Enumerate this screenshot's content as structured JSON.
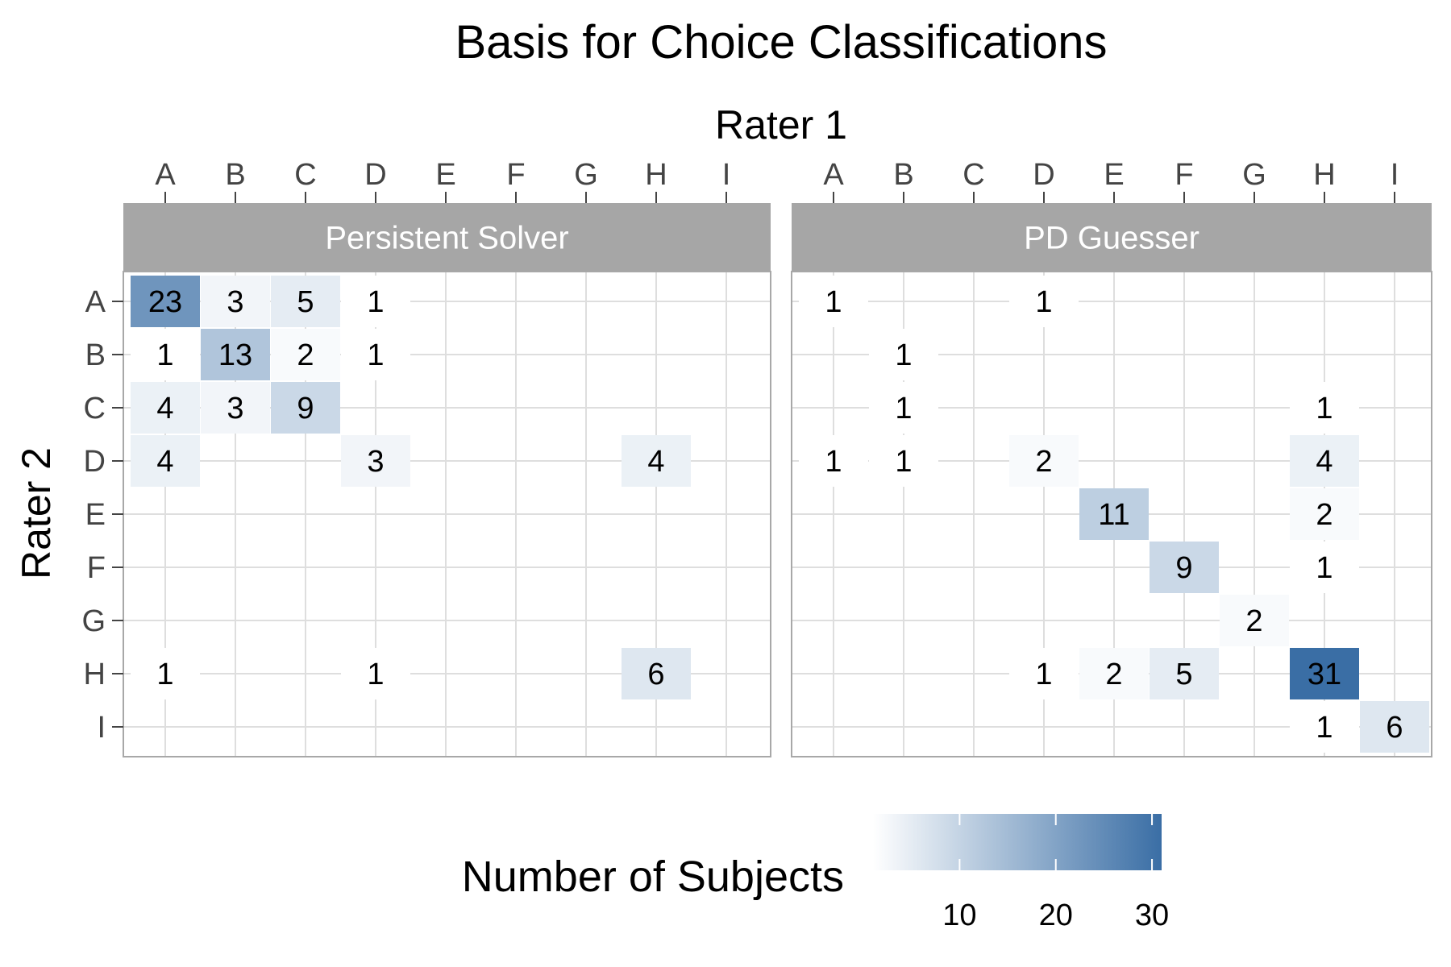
{
  "chart_data": {
    "type": "heatmap",
    "title": "Basis for Choice Classifications",
    "xlabel": "Rater 1",
    "ylabel": "Rater 2",
    "x_categories": [
      "A",
      "B",
      "C",
      "D",
      "E",
      "F",
      "G",
      "H",
      "I"
    ],
    "y_categories": [
      "A",
      "B",
      "C",
      "D",
      "E",
      "F",
      "G",
      "H",
      "I"
    ],
    "legend": {
      "title": "Number of Subjects",
      "ticks": [
        10,
        20,
        30
      ],
      "range": [
        1,
        31
      ],
      "low_color": "#ffffff",
      "high_color": "#3a6ea5",
      "placement": "bottom"
    },
    "panels": [
      {
        "name": "Persistent Solver",
        "cells": [
          {
            "x": "A",
            "y": "A",
            "value": 23
          },
          {
            "x": "B",
            "y": "A",
            "value": 3
          },
          {
            "x": "C",
            "y": "A",
            "value": 5
          },
          {
            "x": "D",
            "y": "A",
            "value": 1
          },
          {
            "x": "A",
            "y": "B",
            "value": 1
          },
          {
            "x": "B",
            "y": "B",
            "value": 13
          },
          {
            "x": "C",
            "y": "B",
            "value": 2
          },
          {
            "x": "D",
            "y": "B",
            "value": 1
          },
          {
            "x": "A",
            "y": "C",
            "value": 4
          },
          {
            "x": "B",
            "y": "C",
            "value": 3
          },
          {
            "x": "C",
            "y": "C",
            "value": 9
          },
          {
            "x": "A",
            "y": "D",
            "value": 4
          },
          {
            "x": "D",
            "y": "D",
            "value": 3
          },
          {
            "x": "H",
            "y": "D",
            "value": 4
          },
          {
            "x": "A",
            "y": "H",
            "value": 1
          },
          {
            "x": "D",
            "y": "H",
            "value": 1
          },
          {
            "x": "H",
            "y": "H",
            "value": 6
          }
        ]
      },
      {
        "name": "PD Guesser",
        "cells": [
          {
            "x": "A",
            "y": "A",
            "value": 1
          },
          {
            "x": "D",
            "y": "A",
            "value": 1
          },
          {
            "x": "B",
            "y": "B",
            "value": 1
          },
          {
            "x": "B",
            "y": "C",
            "value": 1
          },
          {
            "x": "H",
            "y": "C",
            "value": 1
          },
          {
            "x": "A",
            "y": "D",
            "value": 1
          },
          {
            "x": "B",
            "y": "D",
            "value": 1
          },
          {
            "x": "D",
            "y": "D",
            "value": 2
          },
          {
            "x": "H",
            "y": "D",
            "value": 4
          },
          {
            "x": "E",
            "y": "E",
            "value": 11
          },
          {
            "x": "H",
            "y": "E",
            "value": 2
          },
          {
            "x": "F",
            "y": "F",
            "value": 9
          },
          {
            "x": "H",
            "y": "F",
            "value": 1
          },
          {
            "x": "G",
            "y": "G",
            "value": 2
          },
          {
            "x": "D",
            "y": "H",
            "value": 1
          },
          {
            "x": "E",
            "y": "H",
            "value": 2
          },
          {
            "x": "F",
            "y": "H",
            "value": 5
          },
          {
            "x": "H",
            "y": "H",
            "value": 31
          },
          {
            "x": "H",
            "y": "I",
            "value": 1
          },
          {
            "x": "I",
            "y": "I",
            "value": 6
          }
        ]
      }
    ]
  }
}
